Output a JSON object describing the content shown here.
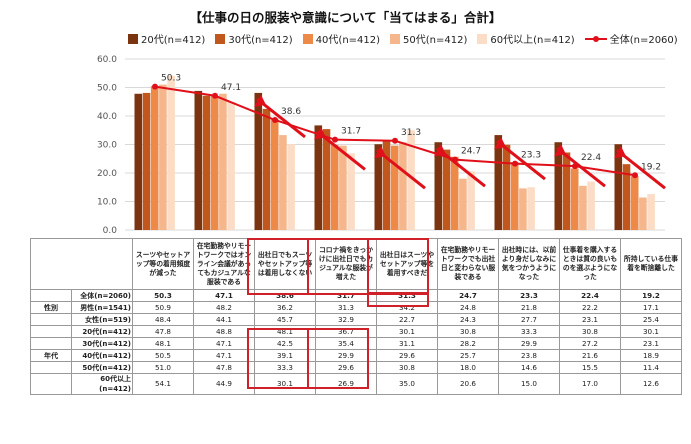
{
  "chart_data": {
    "type": "bar",
    "title": "【仕事の日の服装や意識について「当てはまる」合計】",
    "ylim": [
      0,
      60
    ],
    "yticks": [
      "0.0",
      "10.0",
      "20.0",
      "30.0",
      "40.0",
      "50.0",
      "60.0"
    ],
    "categories": [
      "スーツやセットアップ等の着用頻度が減った",
      "在宅勤務やリモートワークではオンライン会議があってもカジュアルな服装である",
      "出社日でもスーツやセットアップ等は着用しなくない",
      "コロナ禍をきっかけに出社日でもカジュアルな服装が増えた",
      "出社日はスーツやセットアップ等を着用すべきだ",
      "在宅勤務やリモートワークでも出社日と変わらない服装である",
      "出社時には、以前より身だしなみに気をつかうようになった",
      "仕事着を購入するときは質の良いものを選ぶようになった",
      "所持している仕事着を断捨離した"
    ],
    "series": [
      {
        "name": "20代(n=412)",
        "color": "#7b3410",
        "values": [
          47.8,
          48.8,
          48.1,
          36.7,
          30.1,
          30.8,
          33.3,
          30.8,
          30.1
        ]
      },
      {
        "name": "30代(n=412)",
        "color": "#c0571c",
        "values": [
          48.1,
          47.1,
          42.5,
          35.4,
          31.1,
          28.2,
          29.9,
          27.2,
          23.1
        ]
      },
      {
        "name": "40代(n=412)",
        "color": "#ee8a48",
        "values": [
          50.5,
          47.1,
          39.1,
          29.9,
          29.6,
          25.7,
          23.8,
          21.6,
          18.9
        ]
      },
      {
        "name": "50代(n=412)",
        "color": "#f6b68c",
        "values": [
          51.0,
          47.8,
          33.3,
          29.6,
          30.8,
          18.0,
          14.6,
          15.5,
          11.4
        ]
      },
      {
        "name": "60代以上(n=412)",
        "color": "#fbdcc6",
        "values": [
          54.1,
          44.9,
          30.1,
          26.9,
          35.0,
          20.6,
          15.0,
          17.0,
          12.6
        ]
      }
    ],
    "total": {
      "name": "全体(n=2060)",
      "color": "#e0101a",
      "values": [
        50.3,
        47.1,
        38.6,
        31.7,
        31.3,
        24.7,
        23.3,
        22.4,
        19.2
      ]
    },
    "total_labels": [
      "50.3",
      "47.1",
      "38.6",
      "31.7",
      "31.3",
      "24.7",
      "23.3",
      "22.4",
      "19.2"
    ],
    "legend_position": "top",
    "grid": true
  },
  "table": {
    "rows": [
      {
        "group": "",
        "label": "全体(n=2060)",
        "values": [
          "50.3",
          "47.1",
          "38.6",
          "31.7",
          "31.3",
          "24.7",
          "23.3",
          "22.4",
          "19.2"
        ],
        "bold": true
      },
      {
        "group": "性別",
        "label": "男性(n=1541)",
        "values": [
          "50.9",
          "48.2",
          "36.2",
          "31.3",
          "34.2",
          "24.8",
          "21.8",
          "22.2",
          "17.1"
        ]
      },
      {
        "group": "",
        "label": "女性(n=519)",
        "values": [
          "48.4",
          "44.1",
          "45.7",
          "32.9",
          "22.7",
          "24.3",
          "27.7",
          "23.1",
          "25.4"
        ]
      },
      {
        "group": "",
        "label": "20代(n=412)",
        "values": [
          "47.8",
          "48.8",
          "48.1",
          "36.7",
          "30.1",
          "30.8",
          "33.3",
          "30.8",
          "30.1"
        ]
      },
      {
        "group": "",
        "label": "30代(n=412)",
        "values": [
          "48.1",
          "47.1",
          "42.5",
          "35.4",
          "31.1",
          "28.2",
          "29.9",
          "27.2",
          "23.1"
        ]
      },
      {
        "group": "年代",
        "label": "40代(n=412)",
        "values": [
          "50.5",
          "47.1",
          "39.1",
          "29.9",
          "29.6",
          "25.7",
          "23.8",
          "21.6",
          "18.9"
        ]
      },
      {
        "group": "",
        "label": "50代(n=412)",
        "values": [
          "51.0",
          "47.8",
          "33.3",
          "29.6",
          "30.8",
          "18.0",
          "14.6",
          "15.5",
          "11.4"
        ]
      },
      {
        "group": "",
        "label": "60代以上(n=412)",
        "values": [
          "54.1",
          "44.9",
          "30.1",
          "26.9",
          "35.0",
          "20.6",
          "15.0",
          "17.0",
          "12.6"
        ]
      }
    ]
  }
}
